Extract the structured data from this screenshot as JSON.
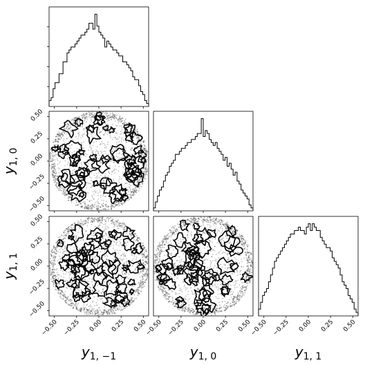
{
  "chart_data": {
    "type": "corner",
    "variables": [
      "y1,-1",
      "y1,0",
      "y1,1"
    ],
    "axis_labels": {
      "x": [
        "y",
        "y",
        "y"
      ],
      "x_sub": [
        "1, −1",
        "1, 0",
        "1, 1"
      ],
      "y": [
        "y",
        "y"
      ],
      "y_sub": [
        "1, 0",
        "1, 1"
      ]
    },
    "range": [
      -0.56,
      0.56
    ],
    "ticks": [
      -0.5,
      -0.25,
      0.0,
      0.25,
      0.5
    ],
    "tick_labels": [
      "−0.50",
      "−0.25",
      "0.00",
      "0.25",
      "0.50"
    ],
    "histograms": [
      {
        "variable": "y1,-1",
        "bins": 50,
        "values": [
          4,
          6,
          12,
          16,
          16,
          22,
          22,
          30,
          30,
          36,
          38,
          40,
          40,
          42,
          44,
          46,
          48,
          48,
          50,
          52,
          56,
          56,
          52,
          62,
          54,
          50,
          48,
          46,
          40,
          44,
          42,
          40,
          38,
          38,
          36,
          34,
          34,
          30,
          30,
          28,
          26,
          24,
          20,
          18,
          18,
          14,
          10,
          8,
          4,
          2
        ]
      },
      {
        "variable": "y1,0",
        "bins": 50,
        "values": [
          2,
          6,
          10,
          14,
          16,
          20,
          24,
          26,
          30,
          32,
          34,
          38,
          38,
          40,
          42,
          42,
          44,
          46,
          46,
          48,
          48,
          50,
          52,
          52,
          62,
          50,
          54,
          52,
          48,
          46,
          44,
          46,
          42,
          40,
          38,
          34,
          36,
          30,
          32,
          28,
          24,
          26,
          20,
          18,
          14,
          12,
          10,
          8,
          4,
          2
        ]
      },
      {
        "variable": "y1,1",
        "bins": 50,
        "values": [
          4,
          8,
          12,
          14,
          16,
          20,
          24,
          28,
          32,
          34,
          36,
          38,
          40,
          42,
          44,
          46,
          48,
          48,
          50,
          50,
          52,
          50,
          50,
          48,
          52,
          54,
          50,
          54,
          52,
          50,
          50,
          46,
          44,
          42,
          40,
          40,
          38,
          34,
          32,
          30,
          28,
          24,
          20,
          18,
          16,
          12,
          10,
          8,
          4,
          2
        ]
      }
    ],
    "scatter": [
      {
        "x": "y1,-1",
        "y": "y1,0",
        "support": "unit disk radius 0.55",
        "style": "black points with contour lines"
      },
      {
        "x": "y1,-1",
        "y": "y1,1",
        "support": "unit disk radius 0.55",
        "style": "black points with contour lines"
      },
      {
        "x": "y1,0",
        "y": "y1,1",
        "support": "unit disk radius 0.55",
        "style": "black points with contour lines"
      }
    ],
    "grid": false,
    "colors": {
      "line": "#000000",
      "points": "#000000",
      "background": "#ffffff"
    }
  }
}
